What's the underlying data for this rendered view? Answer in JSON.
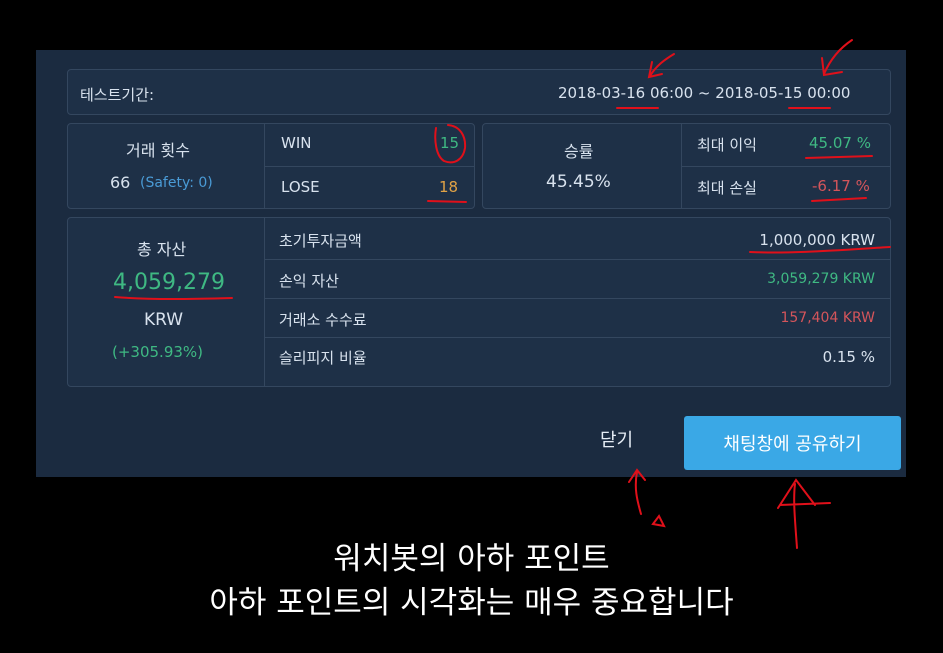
{
  "period": {
    "label": "테스트기간:",
    "value": "2018-03-16 06:00 ~ 2018-05-15 00:00"
  },
  "trades": {
    "label": "거래 횟수",
    "count": "66",
    "safety": "(Safety: 0)",
    "win_label": "WIN",
    "win_value": "15",
    "lose_label": "LOSE",
    "lose_value": "18"
  },
  "winrate": {
    "label": "승률",
    "value": "45.45%",
    "max_profit_label": "최대 이익",
    "max_profit_value": "45.07 %",
    "max_loss_label": "최대 손실",
    "max_loss_value": "-6.17 %"
  },
  "assets": {
    "total_label": "총 자산",
    "total_value": "4,059,279",
    "currency": "KRW",
    "change": "(+305.93%)",
    "rows": [
      {
        "label": "초기투자금액",
        "value": "1,000,000 KRW"
      },
      {
        "label": "손익 자산",
        "value": "3,059,279 KRW"
      },
      {
        "label": "거래소 수수료",
        "value": "157,404 KRW"
      },
      {
        "label": "슬리피지 비율",
        "value": "0.15 %"
      }
    ]
  },
  "buttons": {
    "close": "닫기",
    "share": "채팅창에 공유하기"
  },
  "captions": {
    "line1": "워치봇의 아하 포인트",
    "line2": "아하 포인트의 시각화는 매우 중요합니다"
  },
  "colors": {
    "panel_bg": "#1b2b40",
    "positive": "#3fb983",
    "negative": "#d4555b",
    "lose": "#e0a246",
    "accent": "#3aa8e6",
    "annotation": "#e0101a"
  }
}
